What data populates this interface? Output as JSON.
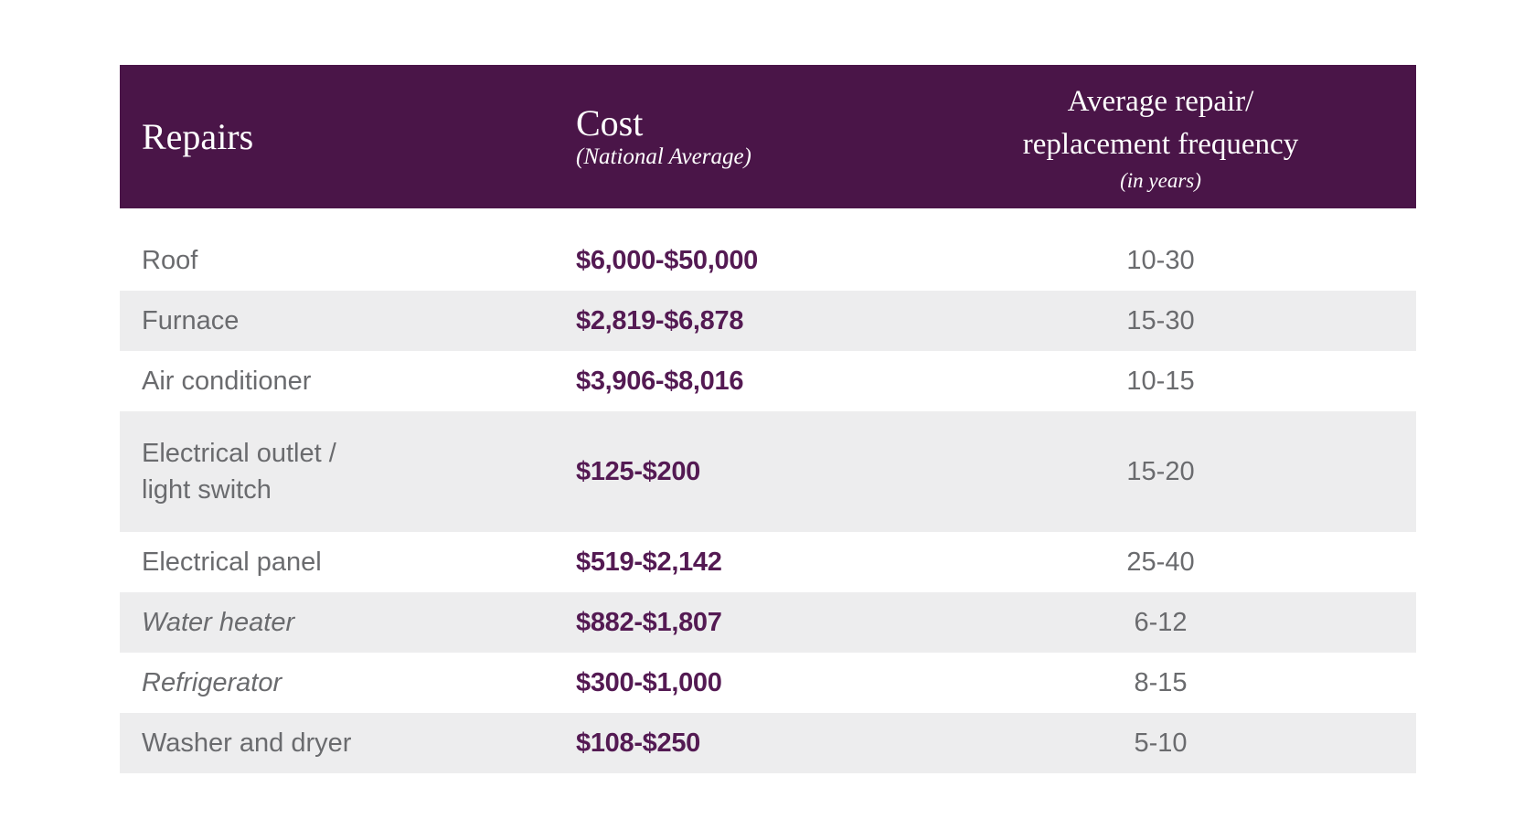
{
  "colors": {
    "header_bg": "#4A1548",
    "cost_text": "#541A53",
    "row_text": "#6A6B6E",
    "stripe": "#EDEDEE"
  },
  "table": {
    "header": {
      "repairs": "Repairs",
      "cost_title": "Cost",
      "cost_subtitle": "(National Average)",
      "frequency_title": "Average repair/\nreplacement frequency",
      "frequency_subtitle": "(in years)"
    },
    "rows": [
      {
        "repair": "Roof",
        "cost": "$6,000-$50,000",
        "frequency": "10-30"
      },
      {
        "repair": "Furnace",
        "cost": "$2,819-$6,878",
        "frequency": "15-30"
      },
      {
        "repair": "Air conditioner",
        "cost": "$3,906-$8,016",
        "frequency": "10-15"
      },
      {
        "repair": "Electrical outlet /\nlight switch",
        "cost": "$125-$200",
        "frequency": "15-20"
      },
      {
        "repair": "Electrical panel",
        "cost": "$519-$2,142",
        "frequency": "25-40"
      },
      {
        "repair": "Water heater",
        "cost": "$882-$1,807",
        "frequency": "6-12"
      },
      {
        "repair": "Refrigerator",
        "cost": "$300-$1,000",
        "frequency": "8-15"
      },
      {
        "repair": "Washer and dryer",
        "cost": "$108-$250",
        "frequency": "5-10"
      }
    ]
  }
}
